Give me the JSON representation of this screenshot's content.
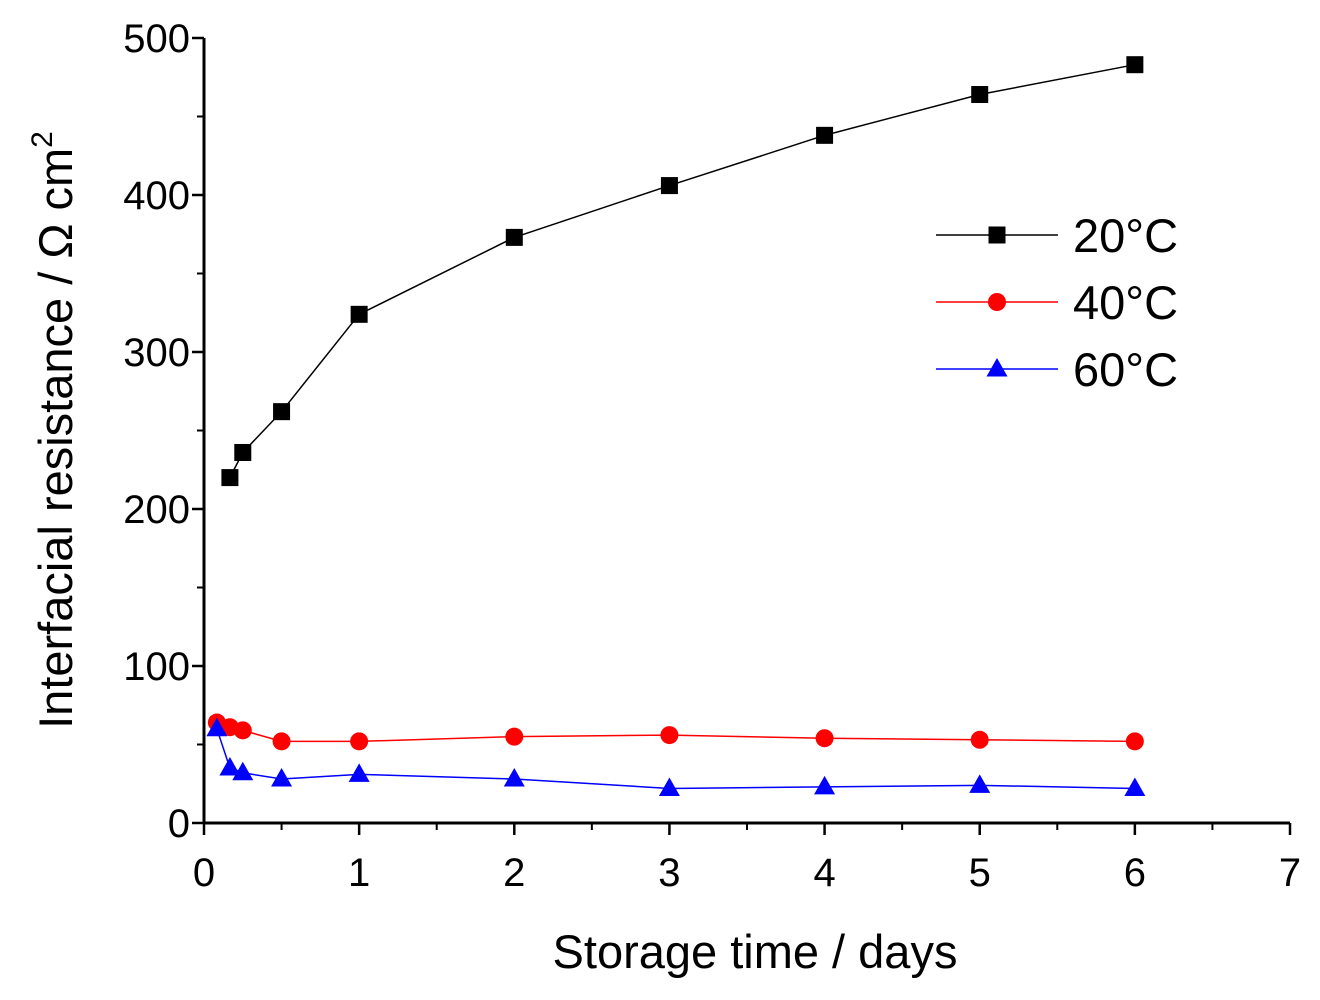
{
  "chart_data": {
    "type": "line",
    "title": "",
    "xlabel": "Storage time / days",
    "ylabel_main": "Interfacial resistance / Ω cm",
    "ylabel_superscript": "2",
    "xlim": [
      0,
      7
    ],
    "ylim": [
      0,
      500
    ],
    "x_ticks": [
      0,
      1,
      2,
      3,
      4,
      5,
      6,
      7
    ],
    "y_ticks": [
      0,
      100,
      200,
      300,
      400,
      500
    ],
    "x_tick_labels": [
      "0",
      "1",
      "2",
      "3",
      "4",
      "5",
      "6",
      "7"
    ],
    "y_tick_labels": [
      "0",
      "100",
      "200",
      "300",
      "400",
      "500"
    ],
    "grid": false,
    "legend_position": "top-right",
    "series": [
      {
        "name": "20°C",
        "color": "#000000",
        "marker": "square",
        "x": [
          0.167,
          0.25,
          0.5,
          1,
          2,
          3,
          4,
          5,
          6
        ],
        "y": [
          220,
          236,
          262,
          324,
          373,
          406,
          438,
          464,
          483
        ]
      },
      {
        "name": "40°C",
        "color": "#ff0000",
        "marker": "circle",
        "x": [
          0.083,
          0.167,
          0.25,
          0.5,
          1,
          2,
          3,
          4,
          5,
          6
        ],
        "y": [
          64,
          61,
          59,
          52,
          52,
          55,
          56,
          54,
          53,
          52
        ]
      },
      {
        "name": "60°C",
        "color": "#0000ff",
        "marker": "triangle",
        "x": [
          0.083,
          0.167,
          0.25,
          0.5,
          1,
          2,
          3,
          4,
          5,
          6
        ],
        "y": [
          60,
          35,
          32,
          28,
          31,
          28,
          22,
          23,
          24,
          22
        ]
      }
    ]
  }
}
